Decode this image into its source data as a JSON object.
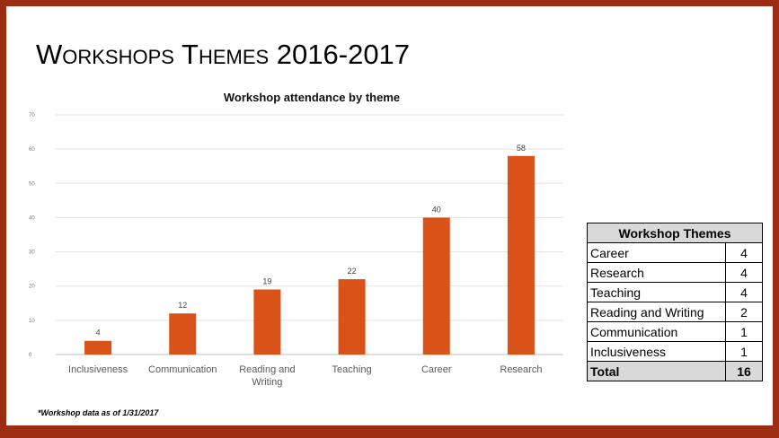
{
  "slide": {
    "title": "Workshops Themes 2016-2017",
    "footnote": "*Workshop data as of 1/31/2017"
  },
  "colors": {
    "frame": "#9b2d12",
    "bar": "#d95319",
    "background": "#ffffff",
    "table_header": "#d9d9d9"
  },
  "chart_data": {
    "type": "bar",
    "title": "Workshop attendance by theme",
    "xlabel": "",
    "ylabel": "",
    "categories": [
      "Inclusiveness",
      "Communication",
      "Reading and Writing",
      "Teaching",
      "Career",
      "Research"
    ],
    "values": [
      4,
      12,
      19,
      22,
      40,
      58
    ],
    "ylim": [
      0,
      70
    ],
    "yticks": [
      0,
      10,
      20,
      30,
      40,
      50,
      60,
      70
    ],
    "grid": true,
    "data_labels": true
  },
  "table": {
    "header": "Workshop Themes",
    "rows": [
      {
        "label": "Career",
        "value": "4"
      },
      {
        "label": "Research",
        "value": "4"
      },
      {
        "label": "Teaching",
        "value": "4"
      },
      {
        "label": "Reading and Writing",
        "value": "2"
      },
      {
        "label": "Communication",
        "value": "1"
      },
      {
        "label": "Inclusiveness",
        "value": "1"
      }
    ],
    "total_label": "Total",
    "total_value": "16"
  }
}
